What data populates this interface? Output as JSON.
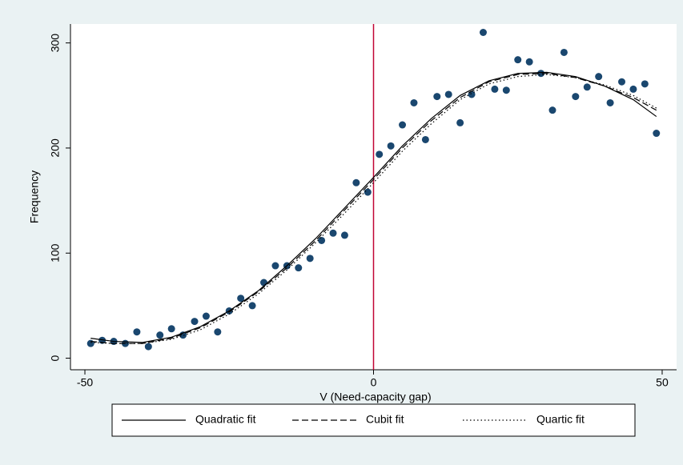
{
  "chart_data": {
    "type": "scatter",
    "xlabel": "V (Need-capacity gap)",
    "ylabel": "Frequency",
    "xlim": [
      -52.5,
      52.5
    ],
    "ylim": [
      -11,
      318
    ],
    "xticks": [
      -50,
      0,
      50
    ],
    "yticks": [
      0,
      100,
      200,
      300
    ],
    "grid": false,
    "xline": {
      "value": 0,
      "color": "#c10534"
    },
    "points": {
      "color": "#1a476f",
      "x": [
        -49,
        -47,
        -45,
        -43,
        -41,
        -39,
        -37,
        -35,
        -33,
        -31,
        -29,
        -27,
        -25,
        -23,
        -21,
        -19,
        -17,
        -15,
        -13,
        -11,
        -9,
        -7,
        -5,
        -3,
        -1,
        1,
        3,
        5,
        7,
        9,
        11,
        13,
        15,
        17,
        19,
        21,
        23,
        25,
        27,
        29,
        31,
        33,
        35,
        37,
        39,
        41,
        43,
        45,
        47,
        49
      ],
      "values": [
        14,
        17,
        16,
        14,
        25,
        11,
        22,
        28,
        22,
        35,
        40,
        25,
        45,
        57,
        50,
        72,
        88,
        88,
        86,
        95,
        112,
        119,
        117,
        167,
        158,
        194,
        202,
        222,
        243,
        208,
        249,
        251,
        224,
        251,
        310,
        256,
        255,
        284,
        282,
        271,
        236,
        291,
        249,
        258,
        268,
        243,
        263,
        256,
        261,
        214
      ]
    },
    "lines": [
      {
        "name": "Quadratic fit",
        "style": "solid",
        "color": "#000000",
        "x": [
          -49,
          -45,
          -40,
          -35,
          -30,
          -25,
          -20,
          -15,
          -10,
          -5,
          0,
          5,
          10,
          15,
          20,
          25,
          30,
          35,
          40,
          45,
          49
        ],
        "values": [
          19,
          16,
          15,
          20,
          30,
          45,
          64,
          88,
          114,
          143,
          172,
          202,
          228,
          250,
          264,
          271,
          272,
          268,
          259,
          246,
          230
        ]
      },
      {
        "name": "Cubit fit",
        "style": "dash",
        "color": "#000000",
        "x": [
          -49,
          -45,
          -40,
          -35,
          -30,
          -25,
          -20,
          -15,
          -10,
          -5,
          0,
          5,
          10,
          15,
          20,
          25,
          30,
          35,
          40,
          45,
          49
        ],
        "values": [
          16,
          14,
          14,
          19,
          29,
          44,
          63,
          86,
          112,
          141,
          170,
          200,
          226,
          248,
          263,
          270,
          271,
          267,
          259,
          248,
          236
        ]
      },
      {
        "name": "Quartic fit",
        "style": "dot",
        "color": "#000000",
        "x": [
          -49,
          -45,
          -40,
          -35,
          -30,
          -25,
          -20,
          -15,
          -10,
          -5,
          0,
          5,
          10,
          15,
          20,
          25,
          30,
          35,
          40,
          45,
          49
        ],
        "values": [
          15,
          14,
          14,
          18,
          27,
          42,
          61,
          84,
          110,
          138,
          167,
          197,
          223,
          246,
          261,
          268,
          270,
          267,
          260,
          250,
          238
        ]
      }
    ]
  }
}
